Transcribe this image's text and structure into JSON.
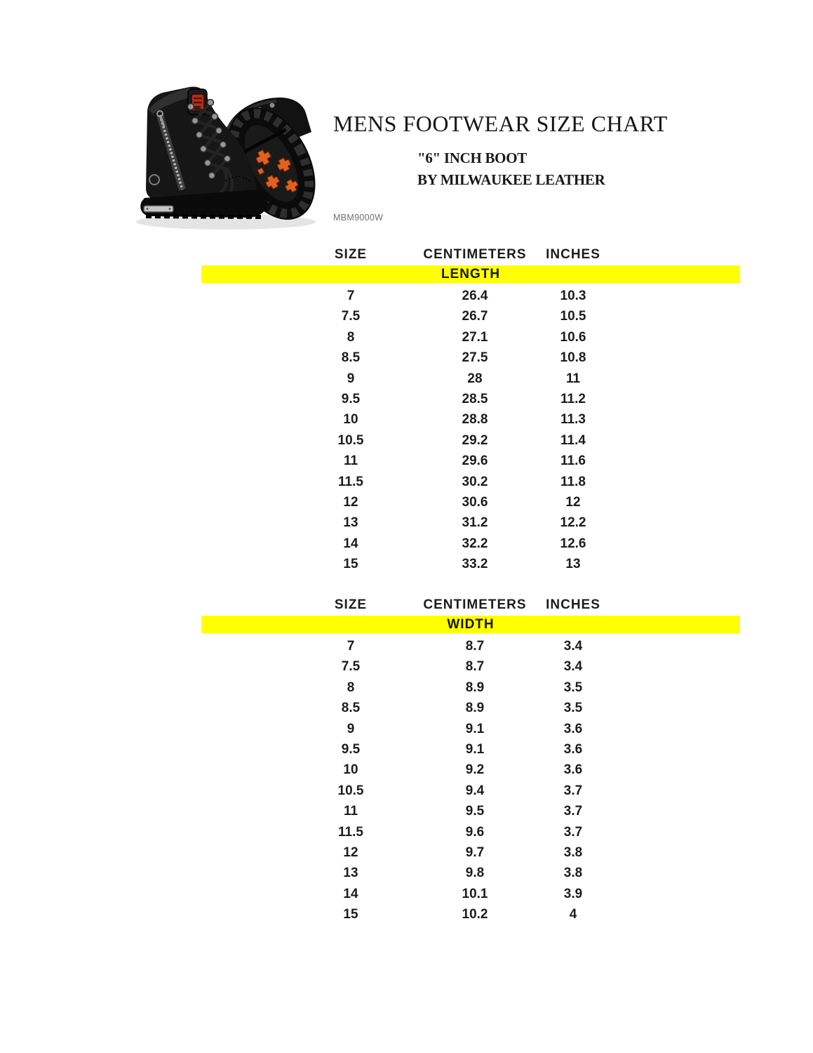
{
  "page": {
    "title": "MENS FOOTWEAR SIZE CHART",
    "subtitle_line1": "\"6\" INCH BOOT",
    "subtitle_line2": "BY MILWAUKEE LEATHER",
    "model_code": "MBM9000W"
  },
  "colors": {
    "highlight_yellow": "#ffff00",
    "table_text": "#1c1c1c",
    "boot_black": "#121212",
    "sole_lug_orange": "#e2611c",
    "logo_patch_red": "#b23018",
    "model_code_gray": "#6e6e6e"
  },
  "tables": [
    {
      "section": "LENGTH",
      "headers": [
        "SIZE",
        "CENTIMETERS",
        "INCHES"
      ],
      "rows": [
        [
          "7",
          "26.4",
          "10.3"
        ],
        [
          "7.5",
          "26.7",
          "10.5"
        ],
        [
          "8",
          "27.1",
          "10.6"
        ],
        [
          "8.5",
          "27.5",
          "10.8"
        ],
        [
          "9",
          "28",
          "11"
        ],
        [
          "9.5",
          "28.5",
          "11.2"
        ],
        [
          "10",
          "28.8",
          "11.3"
        ],
        [
          "10.5",
          "29.2",
          "11.4"
        ],
        [
          "11",
          "29.6",
          "11.6"
        ],
        [
          "11.5",
          "30.2",
          "11.8"
        ],
        [
          "12",
          "30.6",
          "12"
        ],
        [
          "13",
          "31.2",
          "12.2"
        ],
        [
          "14",
          "32.2",
          "12.6"
        ],
        [
          "15",
          "33.2",
          "13"
        ]
      ]
    },
    {
      "section": "WIDTH",
      "headers": [
        "SIZE",
        "CENTIMETERS",
        "INCHES"
      ],
      "rows": [
        [
          "7",
          "8.7",
          "3.4"
        ],
        [
          "7.5",
          "8.7",
          "3.4"
        ],
        [
          "8",
          "8.9",
          "3.5"
        ],
        [
          "8.5",
          "8.9",
          "3.5"
        ],
        [
          "9",
          "9.1",
          "3.6"
        ],
        [
          "9.5",
          "9.1",
          "3.6"
        ],
        [
          "10",
          "9.2",
          "3.6"
        ],
        [
          "10.5",
          "9.4",
          "3.7"
        ],
        [
          "11",
          "9.5",
          "3.7"
        ],
        [
          "11.5",
          "9.6",
          "3.7"
        ],
        [
          "12",
          "9.7",
          "3.8"
        ],
        [
          "13",
          "9.8",
          "3.8"
        ],
        [
          "14",
          "10.1",
          "3.9"
        ],
        [
          "15",
          "10.2",
          "4"
        ]
      ]
    }
  ],
  "chart_data": [
    {
      "type": "table",
      "title": "LENGTH",
      "columns": [
        "SIZE",
        "CENTIMETERS",
        "INCHES"
      ],
      "rows": [
        [
          7,
          26.4,
          10.3
        ],
        [
          7.5,
          26.7,
          10.5
        ],
        [
          8,
          27.1,
          10.6
        ],
        [
          8.5,
          27.5,
          10.8
        ],
        [
          9,
          28,
          11
        ],
        [
          9.5,
          28.5,
          11.2
        ],
        [
          10,
          28.8,
          11.3
        ],
        [
          10.5,
          29.2,
          11.4
        ],
        [
          11,
          29.6,
          11.6
        ],
        [
          11.5,
          30.2,
          11.8
        ],
        [
          12,
          30.6,
          12
        ],
        [
          13,
          31.2,
          12.2
        ],
        [
          14,
          32.2,
          12.6
        ],
        [
          15,
          33.2,
          13
        ]
      ]
    },
    {
      "type": "table",
      "title": "WIDTH",
      "columns": [
        "SIZE",
        "CENTIMETERS",
        "INCHES"
      ],
      "rows": [
        [
          7,
          8.7,
          3.4
        ],
        [
          7.5,
          8.7,
          3.4
        ],
        [
          8,
          8.9,
          3.5
        ],
        [
          8.5,
          8.9,
          3.5
        ],
        [
          9,
          9.1,
          3.6
        ],
        [
          9.5,
          9.1,
          3.6
        ],
        [
          10,
          9.2,
          3.6
        ],
        [
          10.5,
          9.4,
          3.7
        ],
        [
          11,
          9.5,
          3.7
        ],
        [
          11.5,
          9.6,
          3.7
        ],
        [
          12,
          9.7,
          3.8
        ],
        [
          13,
          9.8,
          3.8
        ],
        [
          14,
          10.1,
          3.9
        ],
        [
          15,
          10.2,
          4
        ]
      ]
    }
  ]
}
